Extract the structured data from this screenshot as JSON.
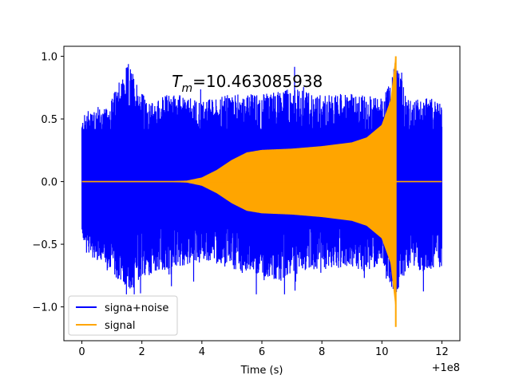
{
  "chart_data": {
    "type": "line",
    "title": "",
    "xlabel": "Time (s)",
    "ylabel": "",
    "xlim": [
      -0.6,
      12.6
    ],
    "ylim": [
      -1.27,
      1.08
    ],
    "x_ticks": [
      0,
      2,
      4,
      6,
      8,
      10,
      12
    ],
    "x_tick_labels": [
      "0",
      "2",
      "4",
      "6",
      "8",
      "10",
      "12"
    ],
    "x_offset_label": "+1e8",
    "y_ticks": [
      1.0,
      0.5,
      0.0,
      -0.5,
      -1.0
    ],
    "y_tick_labels": [
      "1.0",
      "0.5",
      "0.0",
      "−0.5",
      "−1.0"
    ],
    "annotation": {
      "prefix": "T",
      "subscript": "m",
      "text": "=10.463085938",
      "x": 3.0,
      "y": 0.8
    },
    "legend": {
      "placement": "lower-left",
      "entries": [
        "signa+noise",
        "signal"
      ]
    },
    "series": [
      {
        "name": "signa+noise",
        "color": "#0000ff",
        "x_range": [
          0,
          12
        ],
        "upper_envelope": [
          [
            0,
            0.5
          ],
          [
            0.3,
            0.62
          ],
          [
            0.8,
            0.58
          ],
          [
            1.56,
            0.95
          ],
          [
            2.2,
            0.62
          ],
          [
            3.0,
            0.72
          ],
          [
            3.5,
            0.67
          ],
          [
            4.0,
            0.65
          ],
          [
            5.0,
            0.7
          ],
          [
            6.0,
            0.7
          ],
          [
            7.0,
            0.75
          ],
          [
            8.0,
            0.7
          ],
          [
            9.0,
            0.7
          ],
          [
            10.0,
            0.68
          ],
          [
            10.45,
            0.95
          ],
          [
            10.9,
            0.65
          ],
          [
            11.5,
            0.68
          ],
          [
            12.0,
            0.65
          ]
        ],
        "lower_envelope": [
          [
            0,
            -0.45
          ],
          [
            0.3,
            -0.6
          ],
          [
            0.8,
            -0.7
          ],
          [
            1.6,
            -0.88
          ],
          [
            2.2,
            -0.75
          ],
          [
            3.0,
            -0.7
          ],
          [
            4.0,
            -0.62
          ],
          [
            5.0,
            -0.7
          ],
          [
            6.0,
            -0.75
          ],
          [
            6.6,
            -0.8
          ],
          [
            7.0,
            -0.72
          ],
          [
            8.0,
            -0.7
          ],
          [
            9.0,
            -0.68
          ],
          [
            9.5,
            -0.75
          ],
          [
            10.0,
            -0.62
          ],
          [
            10.45,
            -0.95
          ],
          [
            10.9,
            -0.7
          ],
          [
            11.5,
            -0.72
          ],
          [
            12.0,
            -0.68
          ]
        ]
      },
      {
        "name": "signal",
        "color": "#ffa500",
        "x_range": [
          0,
          12
        ],
        "envelope": [
          [
            0,
            0.0
          ],
          [
            3.0,
            0.0
          ],
          [
            3.5,
            0.005
          ],
          [
            4.0,
            0.03
          ],
          [
            4.5,
            0.09
          ],
          [
            5.0,
            0.17
          ],
          [
            5.5,
            0.23
          ],
          [
            6.0,
            0.25
          ],
          [
            7.0,
            0.26
          ],
          [
            8.0,
            0.28
          ],
          [
            9.0,
            0.31
          ],
          [
            9.5,
            0.35
          ],
          [
            10.0,
            0.45
          ],
          [
            10.3,
            0.65
          ],
          [
            10.463,
            1.0
          ],
          [
            10.5,
            0.0
          ],
          [
            12.0,
            0.0
          ]
        ],
        "peak": {
          "x": 10.463,
          "max": 1.0,
          "min": -1.16
        }
      }
    ]
  }
}
